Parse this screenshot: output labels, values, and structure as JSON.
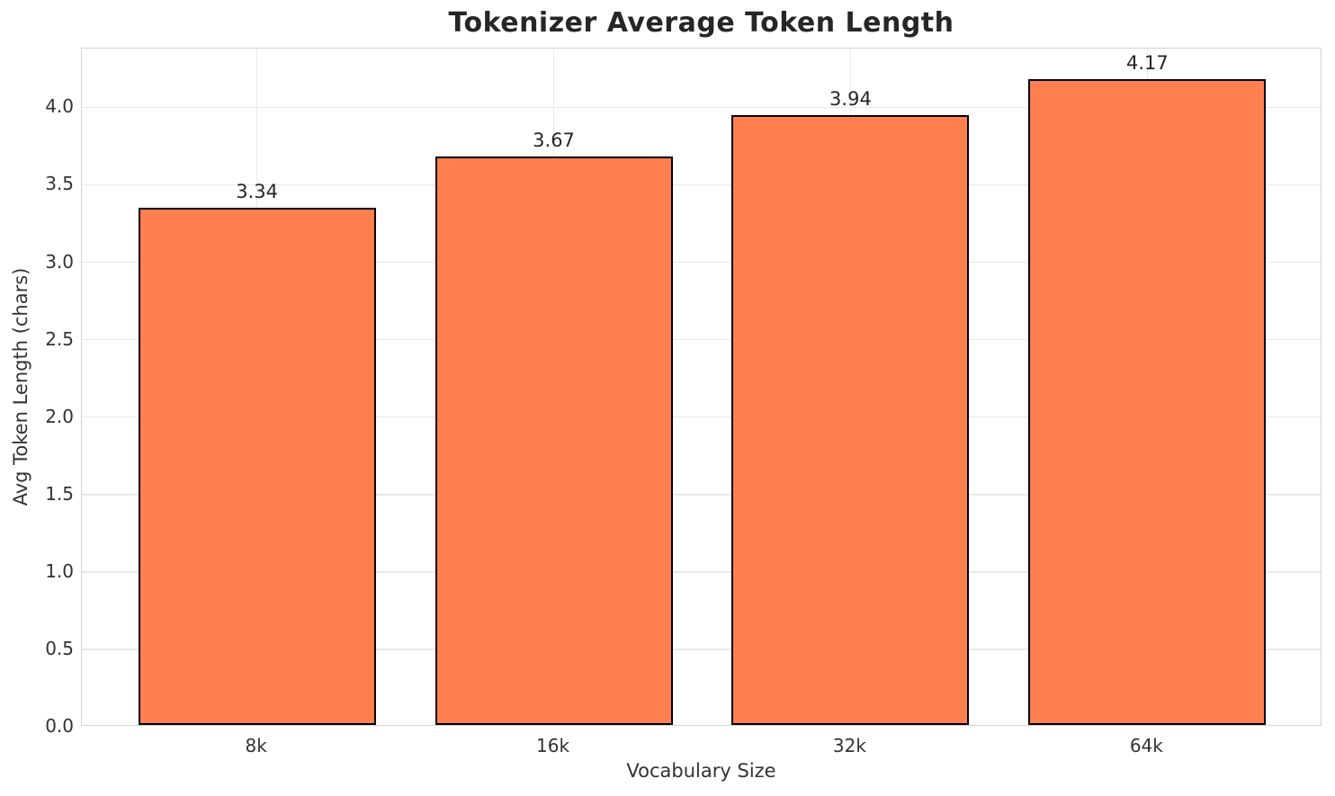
{
  "figure": {
    "title": "Tokenizer Average Token Length"
  },
  "chart_data": {
    "type": "bar",
    "title": "Tokenizer Average Token Length",
    "xlabel": "Vocabulary Size",
    "ylabel": "Avg Token Length (chars)",
    "categories": [
      "8k",
      "16k",
      "32k",
      "64k"
    ],
    "values": [
      3.34,
      3.67,
      3.94,
      4.17
    ],
    "value_labels": [
      "3.34",
      "3.67",
      "3.94",
      "4.17"
    ],
    "yticks": [
      0.0,
      0.5,
      1.0,
      1.5,
      2.0,
      2.5,
      3.0,
      3.5,
      4.0
    ],
    "ytick_labels": [
      "0.0",
      "0.5",
      "1.0",
      "1.5",
      "2.0",
      "2.5",
      "3.0",
      "3.5",
      "4.0"
    ],
    "ylim": [
      0,
      4.38
    ],
    "grid": true,
    "grid_axes": "both",
    "legend": null,
    "colors": {
      "bar_fill": "#FF7F50",
      "bar_edge": "#000000",
      "grid": "#e9e9e9",
      "spine": "#d2d2d2",
      "title_text": "#262626",
      "tick_text": "#333333"
    }
  }
}
